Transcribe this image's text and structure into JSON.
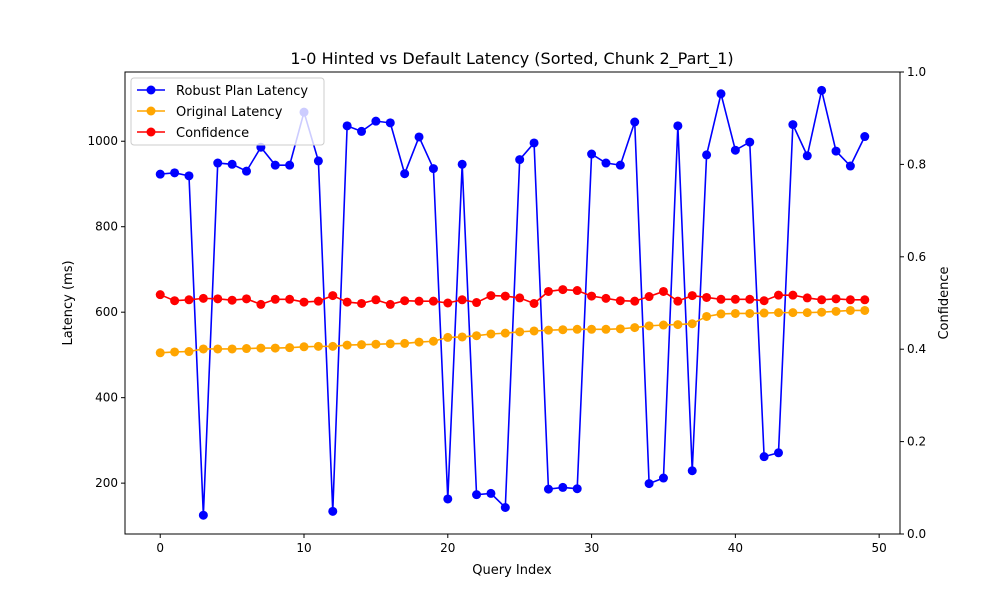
{
  "chart_data": {
    "type": "line",
    "title": "1-0 Hinted vs Default Latency (Sorted, Chunk 2_Part_1)",
    "xlabel": "Query Index",
    "ylabel": "Latency (ms)",
    "y2label": "Confidence",
    "xlim": [
      -2.45,
      51.45
    ],
    "ylim": [
      81,
      1162
    ],
    "y2lim": [
      0,
      1
    ],
    "xticks": [
      0,
      10,
      20,
      30,
      40,
      50
    ],
    "yticks": [
      200,
      400,
      600,
      800,
      1000
    ],
    "y2ticks": [
      0.0,
      0.2,
      0.4,
      0.6,
      0.8,
      1.0
    ],
    "y2tick_labels": [
      "0.0",
      "0.2",
      "0.4",
      "0.6",
      "0.8",
      "1.0"
    ],
    "legend_position": "top-left",
    "x": [
      0,
      1,
      2,
      3,
      4,
      5,
      6,
      7,
      8,
      9,
      10,
      11,
      12,
      13,
      14,
      15,
      16,
      17,
      18,
      19,
      20,
      21,
      22,
      23,
      24,
      25,
      26,
      27,
      28,
      29,
      30,
      31,
      32,
      33,
      34,
      35,
      36,
      37,
      38,
      39,
      40,
      41,
      42,
      43,
      44,
      45,
      46,
      47,
      48,
      49
    ],
    "series": [
      {
        "name": "Robust Plan Latency",
        "color": "#0000ff",
        "axis": "left",
        "values": [
          923,
          926,
          919,
          125,
          949,
          946,
          930,
          986,
          944,
          944,
          1068,
          954,
          134,
          1036,
          1023,
          1047,
          1043,
          924,
          1010,
          936,
          163,
          946,
          173,
          176,
          143,
          957,
          996,
          186,
          190,
          187,
          970,
          949,
          944,
          1045,
          199,
          212,
          1036,
          229,
          968,
          1111,
          979,
          998,
          262,
          271,
          1039,
          966,
          1119,
          977,
          942,
          1011
        ]
      },
      {
        "name": "Original Latency",
        "color": "#ffa500",
        "axis": "left",
        "values": [
          505,
          507,
          508,
          514,
          514,
          514,
          515,
          516,
          516,
          517,
          519,
          520,
          520,
          523,
          524,
          525,
          526,
          527,
          530,
          532,
          541,
          542,
          545,
          549,
          551,
          554,
          556,
          558,
          559,
          560,
          560,
          560,
          561,
          564,
          568,
          570,
          571,
          573,
          590,
          596,
          597,
          597,
          598,
          599,
          599,
          599,
          600,
          602,
          604,
          604
        ]
      },
      {
        "name": "Confidence",
        "color": "#ff0000",
        "axis": "right",
        "values": [
          0.518,
          0.505,
          0.507,
          0.51,
          0.509,
          0.506,
          0.509,
          0.497,
          0.508,
          0.508,
          0.502,
          0.504,
          0.516,
          0.502,
          0.499,
          0.507,
          0.497,
          0.505,
          0.504,
          0.504,
          0.5,
          0.507,
          0.501,
          0.516,
          0.515,
          0.511,
          0.499,
          0.525,
          0.529,
          0.527,
          0.515,
          0.51,
          0.505,
          0.504,
          0.514,
          0.525,
          0.504,
          0.516,
          0.512,
          0.508,
          0.508,
          0.508,
          0.505,
          0.517,
          0.517,
          0.511,
          0.507,
          0.509,
          0.507,
          0.507
        ]
      }
    ]
  }
}
